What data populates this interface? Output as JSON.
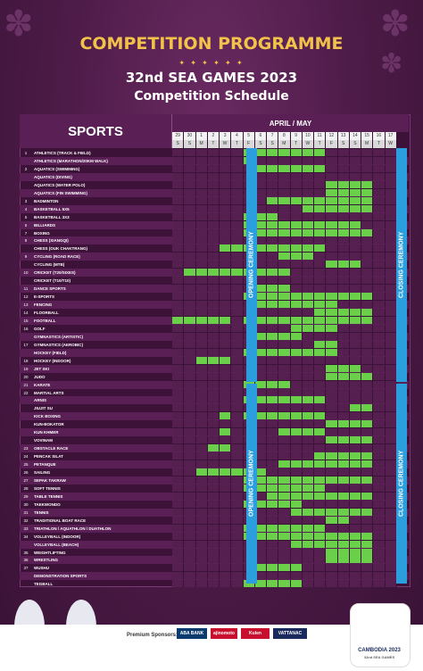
{
  "header": {
    "title": "COMPETITION PROGRAMME",
    "decoration": "✦ ✦ ✦ ✦ ✦ ✦",
    "subtitle": "32nd SEA GAMES 2023",
    "subtitle2": "Competition Schedule"
  },
  "table": {
    "sports_header": "SPORTS",
    "month_header": "APRIL / MAY",
    "days": [
      "29",
      "30",
      "1",
      "2",
      "3",
      "4",
      "5",
      "6",
      "7",
      "8",
      "9",
      "10",
      "11",
      "12",
      "13",
      "14",
      "15",
      "16",
      "17"
    ],
    "weekdays": [
      "S",
      "S",
      "M",
      "T",
      "W",
      "T",
      "F",
      "S",
      "S",
      "M",
      "T",
      "W",
      "T",
      "F",
      "S",
      "S",
      "M",
      "T",
      "W"
    ],
    "opening_label": "OPENING CEREMONY",
    "closing_label": "CLOSING CEREMONY",
    "sports": [
      {
        "num": "1",
        "name": "ATHLETICS (TRACK & FIELD)",
        "days": [
          6,
          7,
          8,
          9,
          10,
          11,
          12
        ]
      },
      {
        "num": "",
        "name": "ATHLETICS (MARATHON/20KM WALK)",
        "days": [
          6
        ]
      },
      {
        "num": "2",
        "name": "AQUATICS (SWIMMING)",
        "days": [
          7,
          8,
          9,
          10,
          11,
          12
        ]
      },
      {
        "num": "",
        "name": "AQUATICS (DIVING)",
        "days": []
      },
      {
        "num": "",
        "name": "AQUATICS (WATER POLO)",
        "days": [
          13,
          14,
          15,
          16
        ]
      },
      {
        "num": "",
        "name": "AQUATICS (FIN SWIMMING)",
        "days": [
          13,
          14,
          15,
          16
        ]
      },
      {
        "num": "3",
        "name": "BADMINTON",
        "days": [
          8,
          9,
          10,
          11,
          12,
          13,
          14,
          15,
          16
        ]
      },
      {
        "num": "4",
        "name": "BASKETBALL 5X5",
        "days": [
          11,
          12,
          13,
          14,
          15,
          16
        ]
      },
      {
        "num": "5",
        "name": "BASKETBALL 3X3",
        "days": [
          6,
          7,
          8
        ]
      },
      {
        "num": "6",
        "name": "BILLIARDS",
        "days": [
          6,
          7,
          8,
          9,
          10,
          11,
          12,
          13,
          14,
          15
        ]
      },
      {
        "num": "7",
        "name": "BOXING",
        "days": [
          6,
          7,
          8,
          9,
          10,
          11,
          12,
          13,
          14,
          15,
          16
        ]
      },
      {
        "num": "8",
        "name": "CHESS (XIANGQI)",
        "days": []
      },
      {
        "num": "",
        "name": "CHESS (OUK CHAKTRANG)",
        "days": [
          4,
          5,
          6,
          7,
          8,
          9,
          10,
          11,
          12
        ]
      },
      {
        "num": "9",
        "name": "CYCLING (ROAD RACE)",
        "days": [
          9,
          10,
          11
        ]
      },
      {
        "num": "",
        "name": "CYCLING (MTB)",
        "days": [
          13,
          14,
          15
        ]
      },
      {
        "num": "10",
        "name": "CRICKET (T20/SIXES)",
        "days": [
          1,
          2,
          3,
          4,
          5,
          6,
          7,
          8,
          9
        ]
      },
      {
        "num": "",
        "name": "CRICKET (T10/T10)",
        "days": []
      },
      {
        "num": "11",
        "name": "DANCE SPORTS",
        "days": [
          7,
          8,
          9
        ]
      },
      {
        "num": "12",
        "name": "E-SPORTS",
        "days": [
          6,
          7,
          8,
          9,
          10,
          11,
          12,
          13,
          14,
          15,
          16
        ]
      },
      {
        "num": "13",
        "name": "FENCING",
        "days": [
          7,
          8,
          9,
          10,
          11,
          12,
          13
        ]
      },
      {
        "num": "14",
        "name": "FLOORBALL",
        "days": [
          12,
          13,
          14,
          15,
          16
        ]
      },
      {
        "num": "15",
        "name": "FOOTBALL",
        "days": [
          0,
          1,
          2,
          3,
          4,
          6,
          7,
          8,
          9,
          10,
          11,
          12,
          13,
          14,
          15,
          16
        ]
      },
      {
        "num": "16",
        "name": "GOLF",
        "days": [
          10,
          11,
          12,
          13
        ]
      },
      {
        "num": "",
        "name": "GYMNASTICS (ARTISTIC)",
        "days": [
          7,
          8,
          9,
          10
        ]
      },
      {
        "num": "17",
        "name": "GYMNASTICS (AEROBIC)",
        "days": [
          12,
          13
        ]
      },
      {
        "num": "",
        "name": "HOCKEY (FIELD)",
        "days": [
          6,
          7,
          8,
          9,
          10,
          11,
          12,
          13
        ]
      },
      {
        "num": "18",
        "name": "HOCKEY (INDOOR)",
        "days": [
          2,
          3,
          4
        ]
      },
      {
        "num": "19",
        "name": "JET SKI",
        "days": [
          13,
          14,
          15
        ]
      },
      {
        "num": "20",
        "name": "JUDO",
        "days": [
          13,
          14,
          15,
          16
        ]
      },
      {
        "num": "21",
        "name": "KARATE",
        "days": [
          6,
          7,
          8,
          9
        ]
      },
      {
        "num": "22",
        "name": "MARTIAL ARTS",
        "days": []
      },
      {
        "num": "",
        "name": "ARNIS",
        "days": [
          6,
          7,
          8,
          9,
          10,
          11,
          12
        ]
      },
      {
        "num": "",
        "name": "JIUJIT SU",
        "days": [
          15,
          16
        ]
      },
      {
        "num": "",
        "name": "KICK BOXING",
        "days": [
          4,
          6,
          7,
          8,
          9,
          10,
          11,
          12
        ]
      },
      {
        "num": "",
        "name": "KUN-BOKATOR",
        "days": [
          13,
          14,
          15,
          16
        ]
      },
      {
        "num": "",
        "name": "KUN KHMER",
        "days": [
          4,
          9,
          10,
          11,
          12
        ]
      },
      {
        "num": "",
        "name": "VOVINAM",
        "days": [
          13,
          14,
          15,
          16
        ]
      },
      {
        "num": "23",
        "name": "OBSTACLE RACE",
        "days": [
          3,
          4
        ]
      },
      {
        "num": "24",
        "name": "PENCAK SILAT",
        "days": [
          12,
          13,
          14,
          15,
          16
        ]
      },
      {
        "num": "25",
        "name": "PETANQUE",
        "days": [
          9,
          10,
          11,
          12,
          13,
          14,
          15,
          16
        ]
      },
      {
        "num": "26",
        "name": "SAILING",
        "days": [
          2,
          3,
          4,
          5,
          6,
          7
        ]
      },
      {
        "num": "27",
        "name": "SEPAK TAKRAW",
        "days": [
          6,
          7,
          8,
          9,
          10,
          11,
          12,
          13,
          14,
          15,
          16
        ]
      },
      {
        "num": "28",
        "name": "SOFT TENNIS",
        "days": [
          6,
          7,
          8,
          9,
          10,
          11,
          12
        ]
      },
      {
        "num": "29",
        "name": "TABLE TENNIS",
        "days": [
          8,
          9,
          10,
          11,
          12,
          13,
          14,
          15,
          16
        ]
      },
      {
        "num": "30",
        "name": "TAEKWONDO",
        "days": [
          6,
          7,
          8,
          9,
          10
        ]
      },
      {
        "num": "31",
        "name": "TENNIS",
        "days": [
          10,
          11,
          12,
          13,
          14,
          15,
          16
        ]
      },
      {
        "num": "32",
        "name": "TRADITIONAL BOAT RACE",
        "days": [
          13,
          14
        ]
      },
      {
        "num": "33",
        "name": "TRIATHLON / AQUATHLON / DUATHLON",
        "days": [
          6,
          7,
          8,
          9,
          10,
          11,
          12
        ]
      },
      {
        "num": "34",
        "name": "VOLLEYBALL (INDOOR)",
        "days": [
          6,
          7,
          8,
          9,
          10,
          11,
          12,
          13,
          14,
          15,
          16
        ]
      },
      {
        "num": "",
        "name": "VOLLEYBALL (BEACH)",
        "days": [
          10,
          11,
          12,
          13,
          14,
          15,
          16
        ]
      },
      {
        "num": "35",
        "name": "WEIGHTLIFTING",
        "days": [
          13,
          14,
          15,
          16
        ]
      },
      {
        "num": "36",
        "name": "WRESTLING",
        "days": [
          13,
          14,
          15,
          16
        ]
      },
      {
        "num": "37",
        "name": "WUSHU",
        "days": [
          7,
          8,
          9,
          10
        ]
      },
      {
        "num": "",
        "name": "DEMONSTRATION SPORTS",
        "days": []
      },
      {
        "num": "",
        "name": "TEGBALL",
        "days": [
          6,
          7,
          8,
          9,
          10
        ]
      }
    ]
  },
  "footer": {
    "sponsors_label": "Premium Sponsors:",
    "sponsors": [
      "ABA BANK",
      "ajinomoto",
      "Kulen",
      "VATTANAC"
    ],
    "logo_text": "CAMBODIA 2023",
    "logo_sub": "32nd SEA GAMES"
  },
  "colors": {
    "background": "#4a1a45",
    "title": "#f2c24a",
    "active": "#6ad04a",
    "ceremony": "#2b9fdd"
  }
}
